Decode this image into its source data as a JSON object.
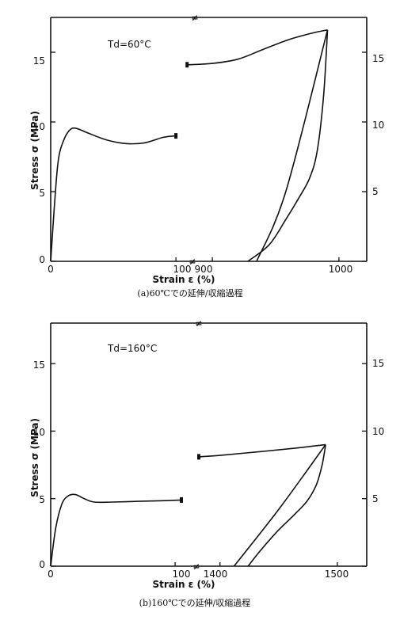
{
  "chart_data": [
    {
      "type": "line",
      "annotation": "Td=60°C",
      "xlabel": "Strain ε (%)",
      "ylabel": "Stress σ (MPa)",
      "caption": "(a)60℃での延伸/収縮過程",
      "break_symbol": "≠",
      "ylim": [
        0,
        17.5
      ],
      "left_xlim": [
        0,
        105
      ],
      "right_xlim": [
        878,
        1022
      ],
      "left_xticks": [
        "0",
        "100"
      ],
      "right_xticks": [
        "900",
        "1000"
      ],
      "yticks_left": [
        "5",
        "10",
        "15"
      ],
      "yticks_right": [
        "5",
        "10",
        "15"
      ],
      "series": [
        {
          "panel": "left",
          "points": [
            [
              0,
              0
            ],
            [
              3,
              4
            ],
            [
              6,
              7.2
            ],
            [
              10,
              8.6
            ],
            [
              15,
              9.4
            ],
            [
              20,
              9.55
            ],
            [
              30,
              9.2
            ],
            [
              45,
              8.7
            ],
            [
              60,
              8.45
            ],
            [
              75,
              8.5
            ],
            [
              90,
              8.9
            ],
            [
              100,
              9.0
            ]
          ]
        },
        {
          "panel": "right",
          "points": [
            [
              880,
              14.1
            ],
            [
              900,
              14.2
            ],
            [
              920,
              14.5
            ],
            [
              940,
              15.2
            ],
            [
              960,
              15.9
            ],
            [
              980,
              16.4
            ],
            [
              991,
              16.6
            ]
          ]
        },
        {
          "panel": "right",
          "points": [
            [
              991,
              16.6
            ],
            [
              958,
              5
            ],
            [
              935,
              0
            ]
          ]
        },
        {
          "panel": "right",
          "points": [
            [
              991,
              16.6
            ],
            [
              988,
              12
            ],
            [
              983,
              8
            ],
            [
              977,
              6
            ],
            [
              968,
              4.5
            ],
            [
              958,
              3
            ],
            [
              945,
              1.2
            ],
            [
              928,
              0
            ]
          ]
        }
      ]
    },
    {
      "type": "line",
      "annotation": "Td=160°C",
      "xlabel": "Strain ε (%)",
      "ylabel": "Stress σ (MPa)",
      "caption": "(b)160℃での延伸/収縮過程",
      "break_symbol": "≠",
      "ylim": [
        0,
        18
      ],
      "left_xlim": [
        0,
        105
      ],
      "right_xlim": [
        1380,
        1525
      ],
      "left_xticks": [
        "0",
        "100"
      ],
      "right_xticks": [
        "1400",
        "1500"
      ],
      "yticks_left": [
        "5",
        "10",
        "15"
      ],
      "yticks_right": [
        "5",
        "10",
        "15"
      ],
      "series": [
        {
          "panel": "left",
          "points": [
            [
              0,
              0
            ],
            [
              4,
              2.8
            ],
            [
              9,
              4.6
            ],
            [
              14,
              5.2
            ],
            [
              20,
              5.3
            ],
            [
              27,
              5.0
            ],
            [
              35,
              4.75
            ],
            [
              50,
              4.75
            ],
            [
              70,
              4.8
            ],
            [
              90,
              4.85
            ],
            [
              105,
              4.9
            ]
          ]
        },
        {
          "panel": "right",
          "points": [
            [
              1382,
              8.1
            ],
            [
              1400,
              8.2
            ],
            [
              1430,
              8.45
            ],
            [
              1460,
              8.7
            ],
            [
              1480,
              8.9
            ],
            [
              1490,
              9.0
            ]
          ]
        },
        {
          "panel": "right",
          "points": [
            [
              1490,
              9.0
            ],
            [
              1450,
              4.2
            ],
            [
              1412,
              0
            ]
          ]
        },
        {
          "panel": "right",
          "points": [
            [
              1490,
              9.0
            ],
            [
              1487,
              7.5
            ],
            [
              1482,
              6.0
            ],
            [
              1474,
              4.8
            ],
            [
              1462,
              3.7
            ],
            [
              1448,
              2.5
            ],
            [
              1433,
              1.0
            ],
            [
              1424,
              0
            ]
          ]
        }
      ]
    }
  ]
}
